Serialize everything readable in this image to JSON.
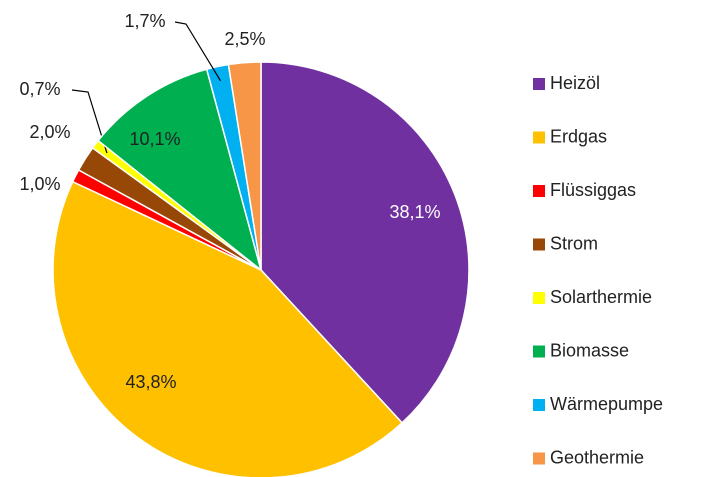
{
  "chart_data": {
    "type": "pie",
    "categories": [
      "Heizöl",
      "Erdgas",
      "Flüssiggas",
      "Strom",
      "Solarthermie",
      "Biomasse",
      "Wärmepumpe",
      "Geothermie"
    ],
    "values": [
      38.1,
      43.8,
      1.0,
      2.0,
      0.7,
      10.1,
      1.7,
      2.5
    ],
    "value_labels": [
      "38,1%",
      "43,8%",
      "1,0%",
      "2,0%",
      "0,7%",
      "10,1%",
      "1,7%",
      "2,5%"
    ],
    "colors": [
      "#7030a0",
      "#ffc000",
      "#ff0000",
      "#974706",
      "#ffff00",
      "#00b050",
      "#00b0f0",
      "#f79646"
    ],
    "legend": "right"
  }
}
